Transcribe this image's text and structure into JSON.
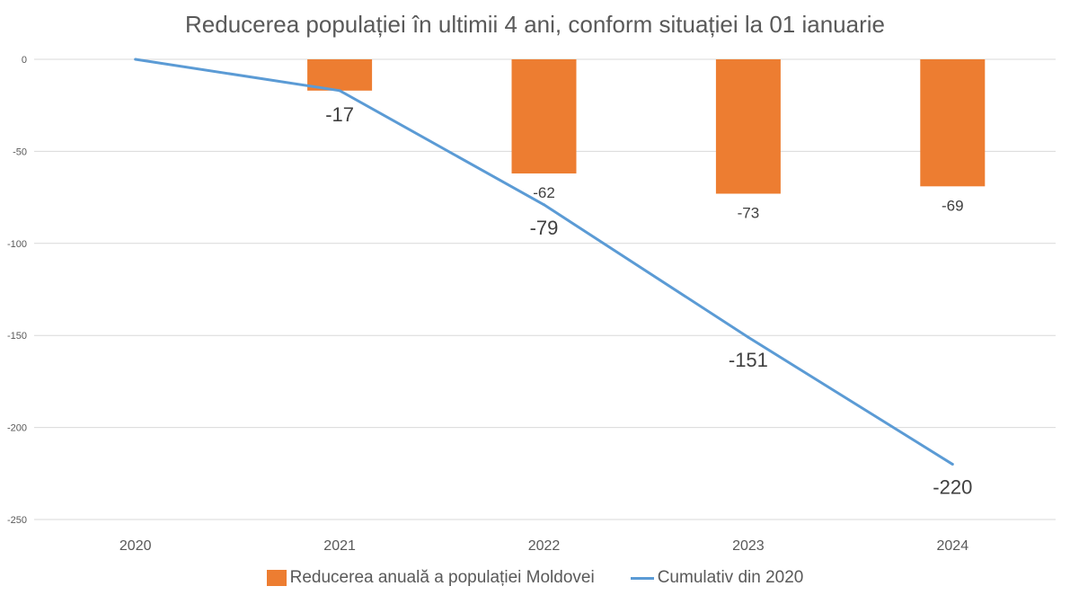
{
  "chart_data": {
    "type": "bar+line",
    "title": "Reducerea populației în ultimii 4 ani, conform situației la 01 ianuarie",
    "categories": [
      "2020",
      "2021",
      "2022",
      "2023",
      "2024"
    ],
    "series": [
      {
        "name": "Reducerea anuală a populației Moldovei",
        "type": "bar",
        "color": "#ED7D31",
        "values": [
          null,
          -17,
          -62,
          -73,
          -69
        ],
        "labels": [
          "",
          "-17",
          "-62",
          "-73",
          "-69"
        ]
      },
      {
        "name": "Cumulativ din 2020",
        "type": "line",
        "color": "#5B9BD5",
        "values": [
          0,
          -17,
          -79,
          -151,
          -220
        ],
        "labels": [
          "",
          "",
          "-79",
          "-151",
          "-220"
        ]
      }
    ],
    "yticks": [
      "0",
      "-50",
      "-100",
      "-150",
      "-200",
      "-250"
    ],
    "ytick_values": [
      0,
      -50,
      -100,
      -150,
      -200,
      -250
    ],
    "ylim": [
      -250,
      0
    ],
    "grid": true,
    "legend_position": "bottom",
    "xlabel": "",
    "ylabel": ""
  }
}
